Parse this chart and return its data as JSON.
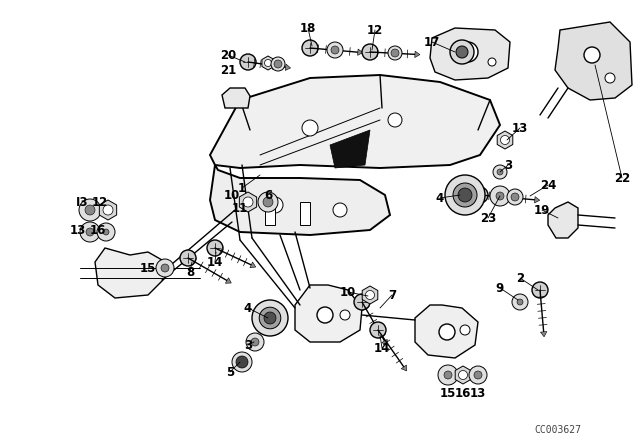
{
  "bg_color": "#ffffff",
  "line_color": "#000000",
  "text_color": "#000000",
  "watermark": "CC003627",
  "fig_width": 6.4,
  "fig_height": 4.48,
  "dpi": 100,
  "font_size": 8.5
}
